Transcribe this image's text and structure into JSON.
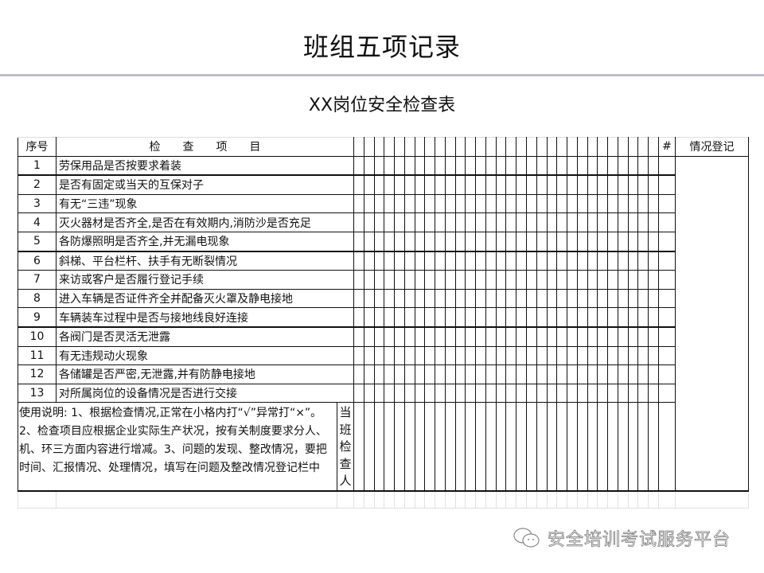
{
  "header": {
    "title": "班组五项记录",
    "subtitle": "XX岗位安全检查表"
  },
  "table": {
    "col_seq": "序号",
    "col_item": "检　　查　　项　　目",
    "col_hash": "#",
    "col_register": "情况登记",
    "grid_columns": 30,
    "rows": [
      {
        "no": "1",
        "item": "劳保用品是否按要求着装"
      },
      {
        "no": "2",
        "item": "是否有固定或当天的互保对子"
      },
      {
        "no": "3",
        "item": "有无“三违”现象"
      },
      {
        "no": "4",
        "item": "灭火器材是否齐全,是否在有效期内,消防沙是否充足"
      },
      {
        "no": "5",
        "item": "各防爆照明是否齐全,并无漏电现象"
      },
      {
        "no": "6",
        "item": "斜梯、平台栏杆、扶手有无断裂情况"
      },
      {
        "no": "7",
        "item": "来访或客户是否履行登记手续"
      },
      {
        "no": "8",
        "item": "进入车辆是否证件齐全并配备灭火罩及静电接地"
      },
      {
        "no": "9",
        "item": "车辆装车过程中是否与接地线良好连接"
      },
      {
        "no": "10",
        "item": "各阀门是否灵活无泄露"
      },
      {
        "no": "11",
        "item": "有无违规动火现象"
      },
      {
        "no": "12",
        "item": "各储罐是否严密,无泄露,并有防静电接地"
      },
      {
        "no": "13",
        "item": "对所属岗位的设备情况是否进行交接"
      }
    ],
    "instructions": "使用说明: 1、根据检查情况,正常在小格内打“√”异常打“×”。2、检查项目应根据企业实际生产状况，按有关制度要求分人、机、环三方面内容进行增减。3、问题的发现、整改情况，要把时间、汇报情况、处理情况，填写在问题及整改情况登记栏中",
    "checker_label": "当班检查人"
  },
  "watermark": {
    "text": "安全培训考试服务平台",
    "icon": "wechat-icon"
  }
}
